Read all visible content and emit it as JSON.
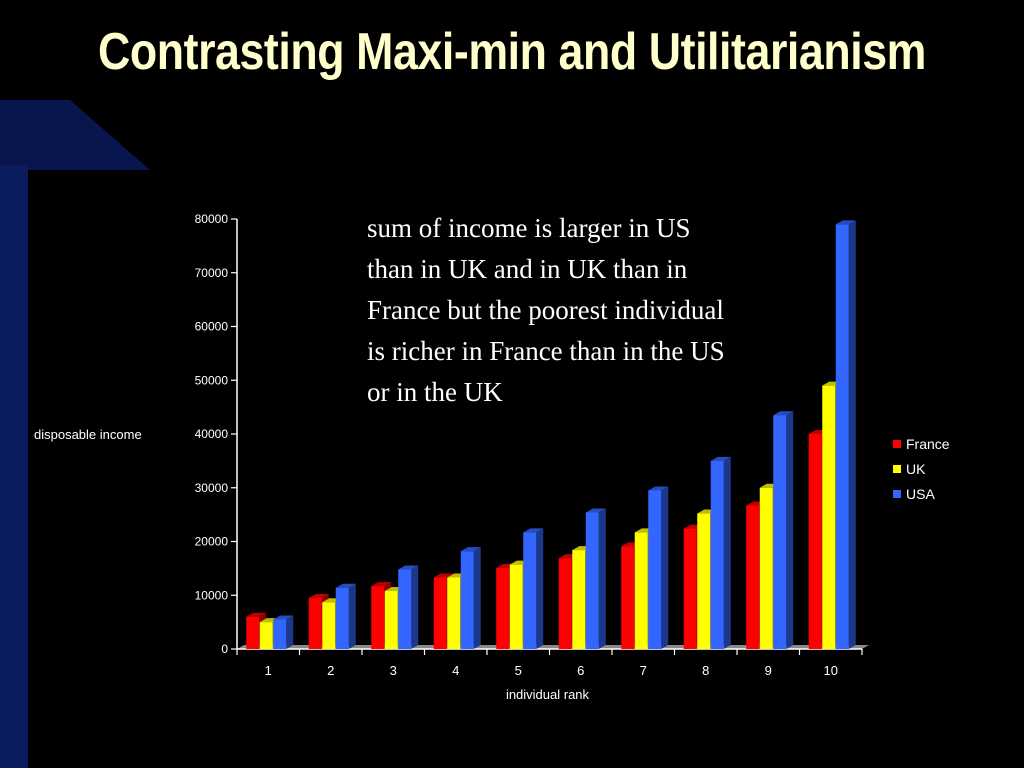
{
  "slide": {
    "title": "Contrasting Maxi-min and Utilitarianism",
    "annotation": "sum of income is larger in US\nthan in UK and in UK than in\nFrance but the poorest individual\nis richer in France than in the US\nor in the UK"
  },
  "chart_data": {
    "type": "bar",
    "title": "",
    "xlabel": "individual rank",
    "ylabel": "disposable income",
    "categories": [
      "1",
      "2",
      "3",
      "4",
      "5",
      "6",
      "7",
      "8",
      "9",
      "10"
    ],
    "series": [
      {
        "name": "France",
        "color": "#ff0000",
        "values": [
          6000,
          9500,
          11700,
          13300,
          15100,
          16900,
          19100,
          22400,
          26700,
          40000
        ]
      },
      {
        "name": "UK",
        "color": "#ffff00",
        "values": [
          5000,
          8700,
          10800,
          13300,
          15700,
          18400,
          21700,
          25200,
          30000,
          49000
        ]
      },
      {
        "name": "USA",
        "color": "#3366ff",
        "values": [
          5500,
          11400,
          14800,
          18200,
          21700,
          25400,
          29500,
          35000,
          43500,
          79000
        ]
      }
    ],
    "ylim": [
      0,
      80000
    ],
    "yticks": [
      "0",
      "10000",
      "20000",
      "30000",
      "40000",
      "50000",
      "60000",
      "70000",
      "80000"
    ],
    "grid": false,
    "three_d": true,
    "legend_position": "right"
  }
}
